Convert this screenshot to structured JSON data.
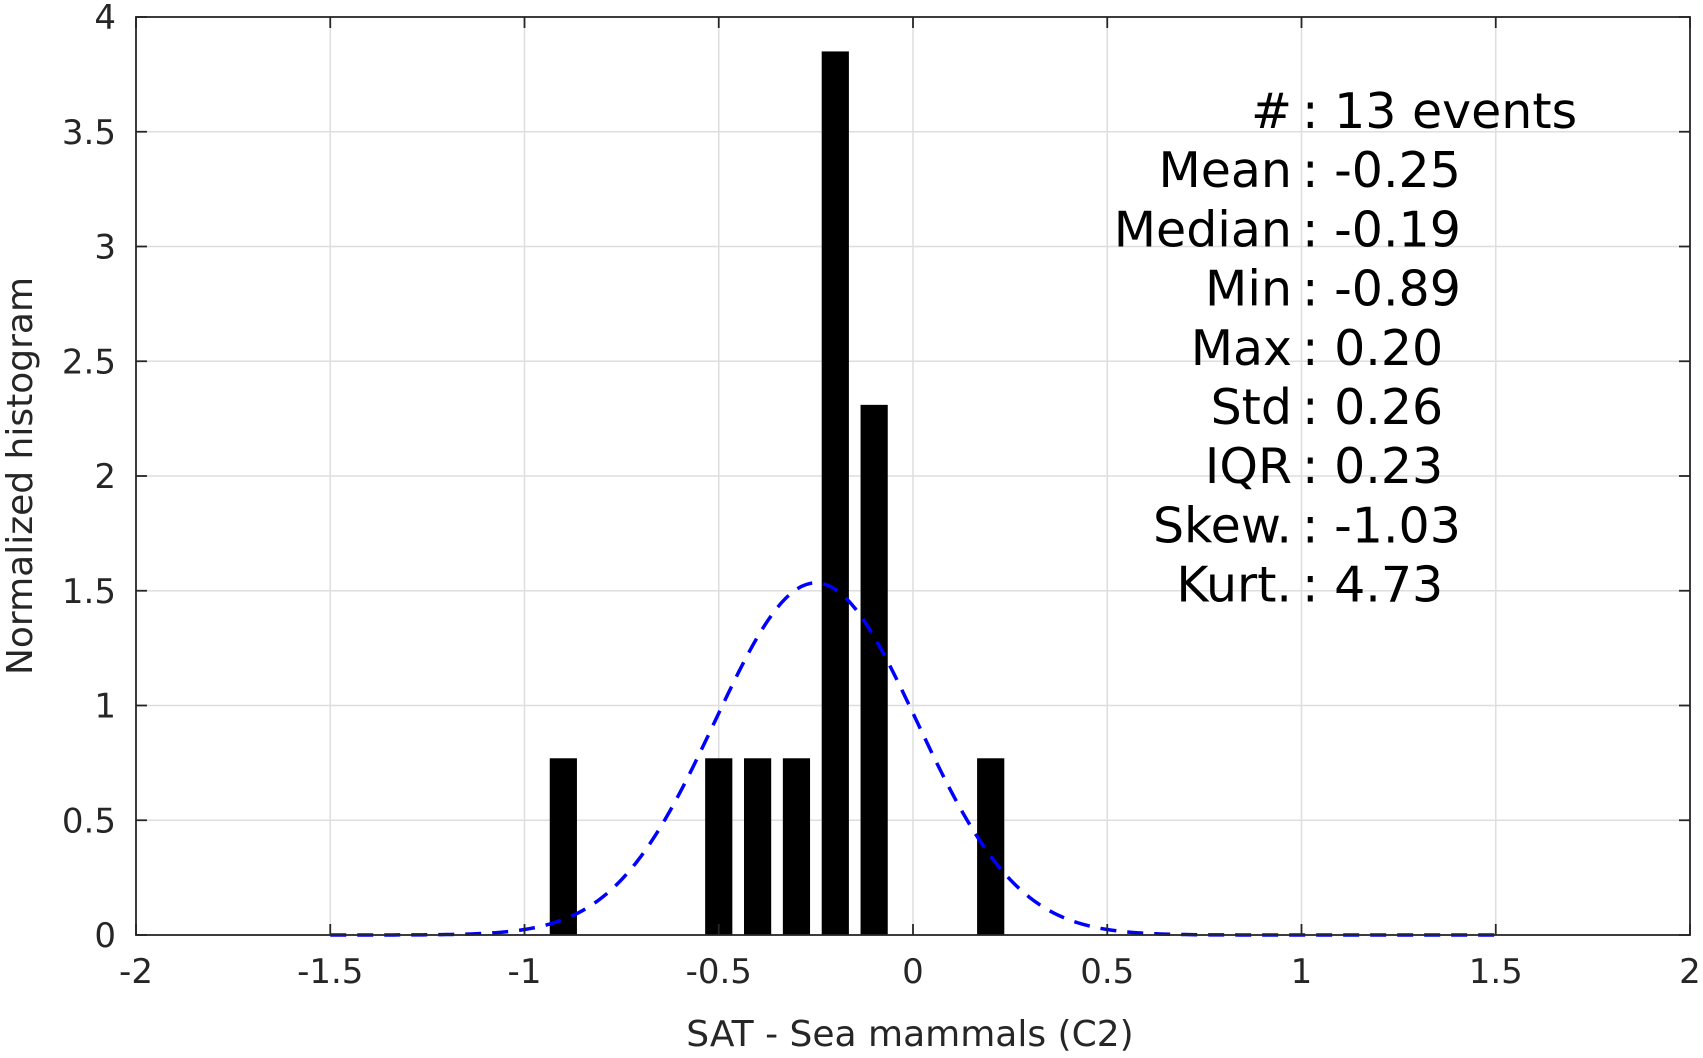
{
  "chart_data": {
    "type": "bar",
    "xlabel": "SAT - Sea mammals (C2)",
    "ylabel": "Normalized histogram",
    "xlim": [
      -2,
      2
    ],
    "ylim": [
      0,
      4
    ],
    "grid": true,
    "x_ticks": [
      -2,
      -1.5,
      -1,
      -0.5,
      0,
      0.5,
      1,
      1.5,
      2
    ],
    "x_tick_labels": [
      "-2",
      "-1.5",
      "-1",
      "-0.5",
      "0",
      "0.5",
      "1",
      "1.5",
      "2"
    ],
    "y_ticks": [
      0,
      0.5,
      1,
      1.5,
      2,
      2.5,
      3,
      3.5,
      4
    ],
    "y_tick_labels": [
      "0",
      "0.5",
      "1",
      "1.5",
      "2",
      "2.5",
      "3",
      "3.5",
      "4"
    ],
    "bar_width": 0.07,
    "bar_color": "#000000",
    "bars": [
      {
        "x": -0.9,
        "value": 0.77
      },
      {
        "x": -0.5,
        "value": 0.77
      },
      {
        "x": -0.4,
        "value": 0.77
      },
      {
        "x": -0.3,
        "value": 0.77
      },
      {
        "x": -0.2,
        "value": 3.85
      },
      {
        "x": -0.1,
        "value": 2.31
      },
      {
        "x": 0.2,
        "value": 0.77
      }
    ],
    "fit_curve": {
      "style": "dashed",
      "color": "#0000ff",
      "mean": -0.25,
      "std": 0.26,
      "x_range": [
        -1.5,
        1.5
      ]
    },
    "stats_lines": [
      "#  : 13 events",
      "Mean : -0.25",
      "Median : -0.19",
      "Min : -0.89",
      "Max : 0.20",
      "Std : 0.26",
      "IQR : 0.23",
      "Skew. : -1.03",
      "Kurt. : 4.73"
    ]
  }
}
